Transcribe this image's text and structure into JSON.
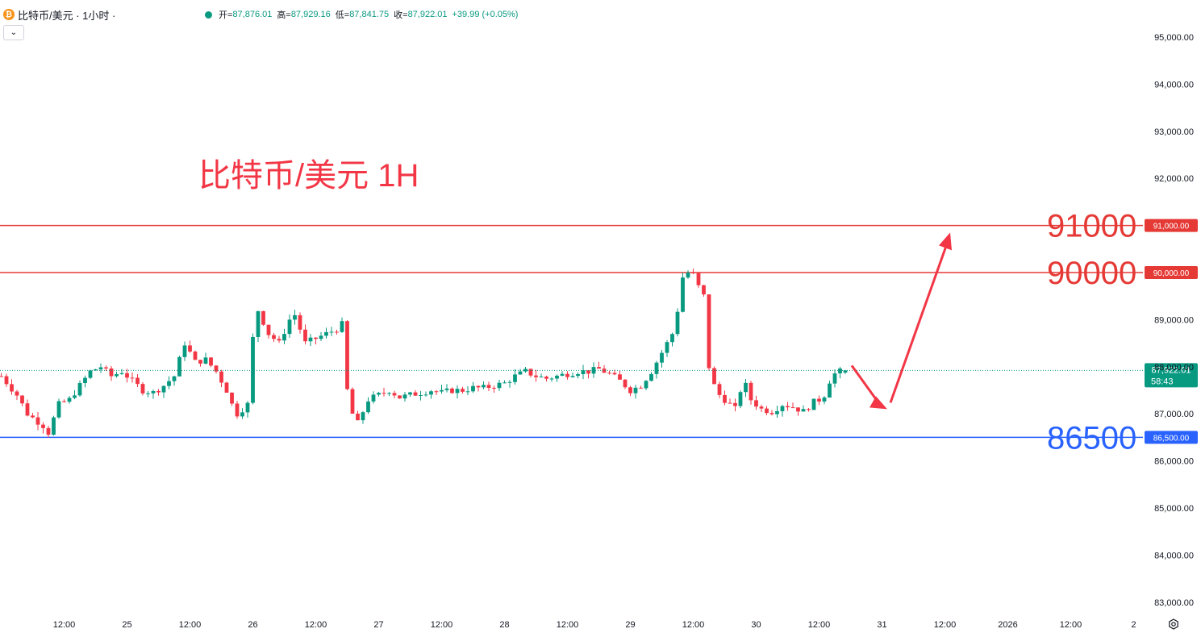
{
  "header": {
    "symbol": "比特币/美元 · 1小时 ·",
    "open_label": "开=",
    "open": "87,876.01",
    "high_label": "高=",
    "high": "87,929.16",
    "low_label": "低=",
    "low": "87,841.75",
    "close_label": "收=",
    "close": "87,922.01",
    "change": "+39.99 (+0.05%)"
  },
  "colors": {
    "up": "#089981",
    "down": "#f23645",
    "resistance": "#e53935",
    "support": "#2962ff",
    "annotation": "#f23645"
  },
  "chart_data": {
    "type": "candlestick",
    "title": "比特币/美元 1H",
    "ylim": [
      82900,
      95700
    ],
    "y_ticks": [
      {
        "value": 95000,
        "label": "95,000.00"
      },
      {
        "value": 94000,
        "label": "94,000.00"
      },
      {
        "value": 93000,
        "label": "93,000.00"
      },
      {
        "value": 92000,
        "label": "92,000.00"
      },
      {
        "value": 89000,
        "label": "89,000.00"
      },
      {
        "value": 88000,
        "label": "88,000.00"
      },
      {
        "value": 87000,
        "label": "87,000.00"
      },
      {
        "value": 86000,
        "label": "86,000.00"
      },
      {
        "value": 85000,
        "label": "85,000.00"
      },
      {
        "value": 84000,
        "label": "84,000.00"
      },
      {
        "value": 83000,
        "label": "83,000.00"
      }
    ],
    "x_ticks": [
      {
        "hour": 12,
        "label": "12:00"
      },
      {
        "hour": 24,
        "label": "25"
      },
      {
        "hour": 36,
        "label": "12:00"
      },
      {
        "hour": 48,
        "label": "26"
      },
      {
        "hour": 60,
        "label": "12:00"
      },
      {
        "hour": 72,
        "label": "27"
      },
      {
        "hour": 84,
        "label": "12:00"
      },
      {
        "hour": 96,
        "label": "28"
      },
      {
        "hour": 108,
        "label": "12:00"
      },
      {
        "hour": 120,
        "label": "29"
      },
      {
        "hour": 132,
        "label": "12:00"
      },
      {
        "hour": 144,
        "label": "30"
      },
      {
        "hour": 156,
        "label": "12:00"
      },
      {
        "hour": 168,
        "label": "31"
      },
      {
        "hour": 180,
        "label": "12:00"
      },
      {
        "hour": 192,
        "label": "2026"
      },
      {
        "hour": 204,
        "label": "12:00"
      },
      {
        "hour": 216,
        "label": "2"
      }
    ],
    "levels": [
      {
        "value": 91000,
        "big_label": "91000",
        "tag": "91,000.00",
        "kind": "resistance"
      },
      {
        "value": 90000,
        "big_label": "90000",
        "tag": "90,000.00",
        "kind": "resistance"
      },
      {
        "value": 86500,
        "big_label": "86500",
        "tag": "86,500.00",
        "kind": "support"
      }
    ],
    "current_price": {
      "value": 87922.01,
      "label": "87,922.01",
      "countdown": "58:43"
    },
    "keypoints": [
      [
        0,
        87800
      ],
      [
        3,
        87400
      ],
      [
        5,
        87000
      ],
      [
        8,
        86750
      ],
      [
        9,
        86600
      ],
      [
        11,
        87200
      ],
      [
        13,
        87300
      ],
      [
        15,
        87600
      ],
      [
        17,
        87900
      ],
      [
        19,
        88000
      ],
      [
        21,
        87800
      ],
      [
        23,
        87900
      ],
      [
        25,
        87700
      ],
      [
        27,
        87500
      ],
      [
        29,
        87450
      ],
      [
        31,
        87600
      ],
      [
        33,
        87800
      ],
      [
        35,
        88500
      ],
      [
        37,
        88100
      ],
      [
        39,
        88150
      ],
      [
        41,
        87900
      ],
      [
        43,
        87500
      ],
      [
        44,
        87200
      ],
      [
        45,
        87000
      ],
      [
        47,
        87200
      ],
      [
        48,
        88600
      ],
      [
        49,
        89200
      ],
      [
        51,
        88700
      ],
      [
        53,
        88500
      ],
      [
        55,
        89000
      ],
      [
        56,
        89100
      ],
      [
        58,
        88500
      ],
      [
        60,
        88600
      ],
      [
        62,
        88700
      ],
      [
        64,
        88800
      ],
      [
        65,
        88900
      ],
      [
        66,
        87500
      ],
      [
        67,
        87000
      ],
      [
        68,
        86800
      ],
      [
        70,
        87300
      ],
      [
        72,
        87400
      ],
      [
        74,
        87500
      ],
      [
        76,
        87350
      ],
      [
        78,
        87400
      ],
      [
        80,
        87450
      ],
      [
        82,
        87500
      ],
      [
        84,
        87450
      ],
      [
        86,
        87500
      ],
      [
        88,
        87500
      ],
      [
        90,
        87550
      ],
      [
        92,
        87550
      ],
      [
        94,
        87600
      ],
      [
        96,
        87650
      ],
      [
        98,
        87800
      ],
      [
        100,
        87900
      ],
      [
        102,
        87800
      ],
      [
        104,
        87750
      ],
      [
        106,
        87800
      ],
      [
        108,
        87850
      ],
      [
        110,
        87900
      ],
      [
        112,
        87900
      ],
      [
        114,
        87950
      ],
      [
        116,
        87850
      ],
      [
        118,
        87700
      ],
      [
        120,
        87500
      ],
      [
        122,
        87600
      ],
      [
        124,
        87900
      ],
      [
        126,
        88300
      ],
      [
        128,
        88700
      ],
      [
        129,
        89200
      ],
      [
        130,
        89900
      ],
      [
        131,
        90000
      ],
      [
        132,
        89950
      ],
      [
        133,
        89700
      ],
      [
        134,
        89500
      ],
      [
        135,
        88000
      ],
      [
        136,
        87600
      ],
      [
        137,
        87400
      ],
      [
        138,
        87300
      ],
      [
        139,
        87200
      ],
      [
        140,
        87100
      ],
      [
        141,
        87500
      ],
      [
        142,
        87600
      ],
      [
        143,
        87300
      ],
      [
        145,
        87100
      ],
      [
        147,
        87050
      ],
      [
        149,
        87200
      ],
      [
        151,
        87150
      ],
      [
        152,
        87100
      ],
      [
        153,
        87050
      ],
      [
        155,
        87250
      ],
      [
        156,
        87300
      ],
      [
        157,
        87400
      ],
      [
        158,
        87700
      ],
      [
        159,
        87850
      ],
      [
        160,
        87900
      ],
      [
        161,
        87922
      ]
    ],
    "last_ohlc": {
      "open": 87876.01,
      "high": 87929.16,
      "low": 87841.75,
      "close": 87922.01
    }
  },
  "icons": {
    "collapse": "chevron-down-icon",
    "symbol": "bitcoin-icon",
    "settings": "settings-icon"
  }
}
